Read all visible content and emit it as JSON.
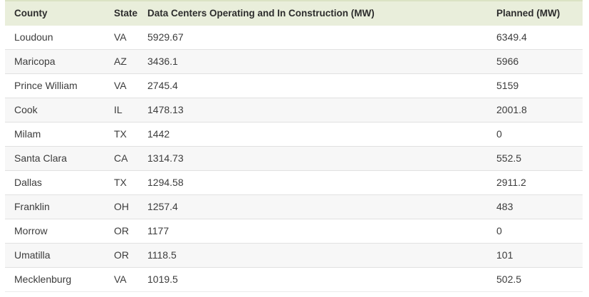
{
  "colors": {
    "header_bg": "#e9eedb",
    "header_top_border": "#dbe3c4",
    "stripe_bg": "#f7f7f7",
    "row_divider": "#e1e1e1",
    "header_text": "#2d2d2d",
    "body_text": "#3c3c3c"
  },
  "table": {
    "columns": [
      "County",
      "State",
      "Data Centers Operating and In Construction (MW)",
      "Planned (MW)"
    ],
    "rows": [
      {
        "county": "Loudoun",
        "state": "VA",
        "operating": "5929.67",
        "planned": "6349.4"
      },
      {
        "county": "Maricopa",
        "state": "AZ",
        "operating": "3436.1",
        "planned": "5966"
      },
      {
        "county": "Prince William",
        "state": "VA",
        "operating": "2745.4",
        "planned": "5159"
      },
      {
        "county": "Cook",
        "state": "IL",
        "operating": "1478.13",
        "planned": "2001.8"
      },
      {
        "county": "Milam",
        "state": "TX",
        "operating": "1442",
        "planned": "0"
      },
      {
        "county": "Santa Clara",
        "state": "CA",
        "operating": "1314.73",
        "planned": "552.5"
      },
      {
        "county": "Dallas",
        "state": "TX",
        "operating": "1294.58",
        "planned": "2911.2"
      },
      {
        "county": "Franklin",
        "state": "OH",
        "operating": "1257.4",
        "planned": "483"
      },
      {
        "county": "Morrow",
        "state": "OR",
        "operating": "1177",
        "planned": "0"
      },
      {
        "county": "Umatilla",
        "state": "OR",
        "operating": "1118.5",
        "planned": "101"
      },
      {
        "county": "Mecklenburg",
        "state": "VA",
        "operating": "1019.5",
        "planned": "502.5"
      }
    ]
  },
  "chart_data": {
    "type": "table",
    "title": "",
    "columns": [
      "County",
      "State",
      "Data Centers Operating and In Construction (MW)",
      "Planned (MW)"
    ],
    "rows": [
      [
        "Loudoun",
        "VA",
        5929.67,
        6349.4
      ],
      [
        "Maricopa",
        "AZ",
        3436.1,
        5966
      ],
      [
        "Prince William",
        "VA",
        2745.4,
        5159
      ],
      [
        "Cook",
        "IL",
        1478.13,
        2001.8
      ],
      [
        "Milam",
        "TX",
        1442,
        0
      ],
      [
        "Santa Clara",
        "CA",
        1314.73,
        552.5
      ],
      [
        "Dallas",
        "TX",
        1294.58,
        2911.2
      ],
      [
        "Franklin",
        "OH",
        1257.4,
        483
      ],
      [
        "Morrow",
        "OR",
        1177,
        0
      ],
      [
        "Umatilla",
        "OR",
        1118.5,
        101
      ],
      [
        "Mecklenburg",
        "VA",
        1019.5,
        502.5
      ]
    ]
  }
}
